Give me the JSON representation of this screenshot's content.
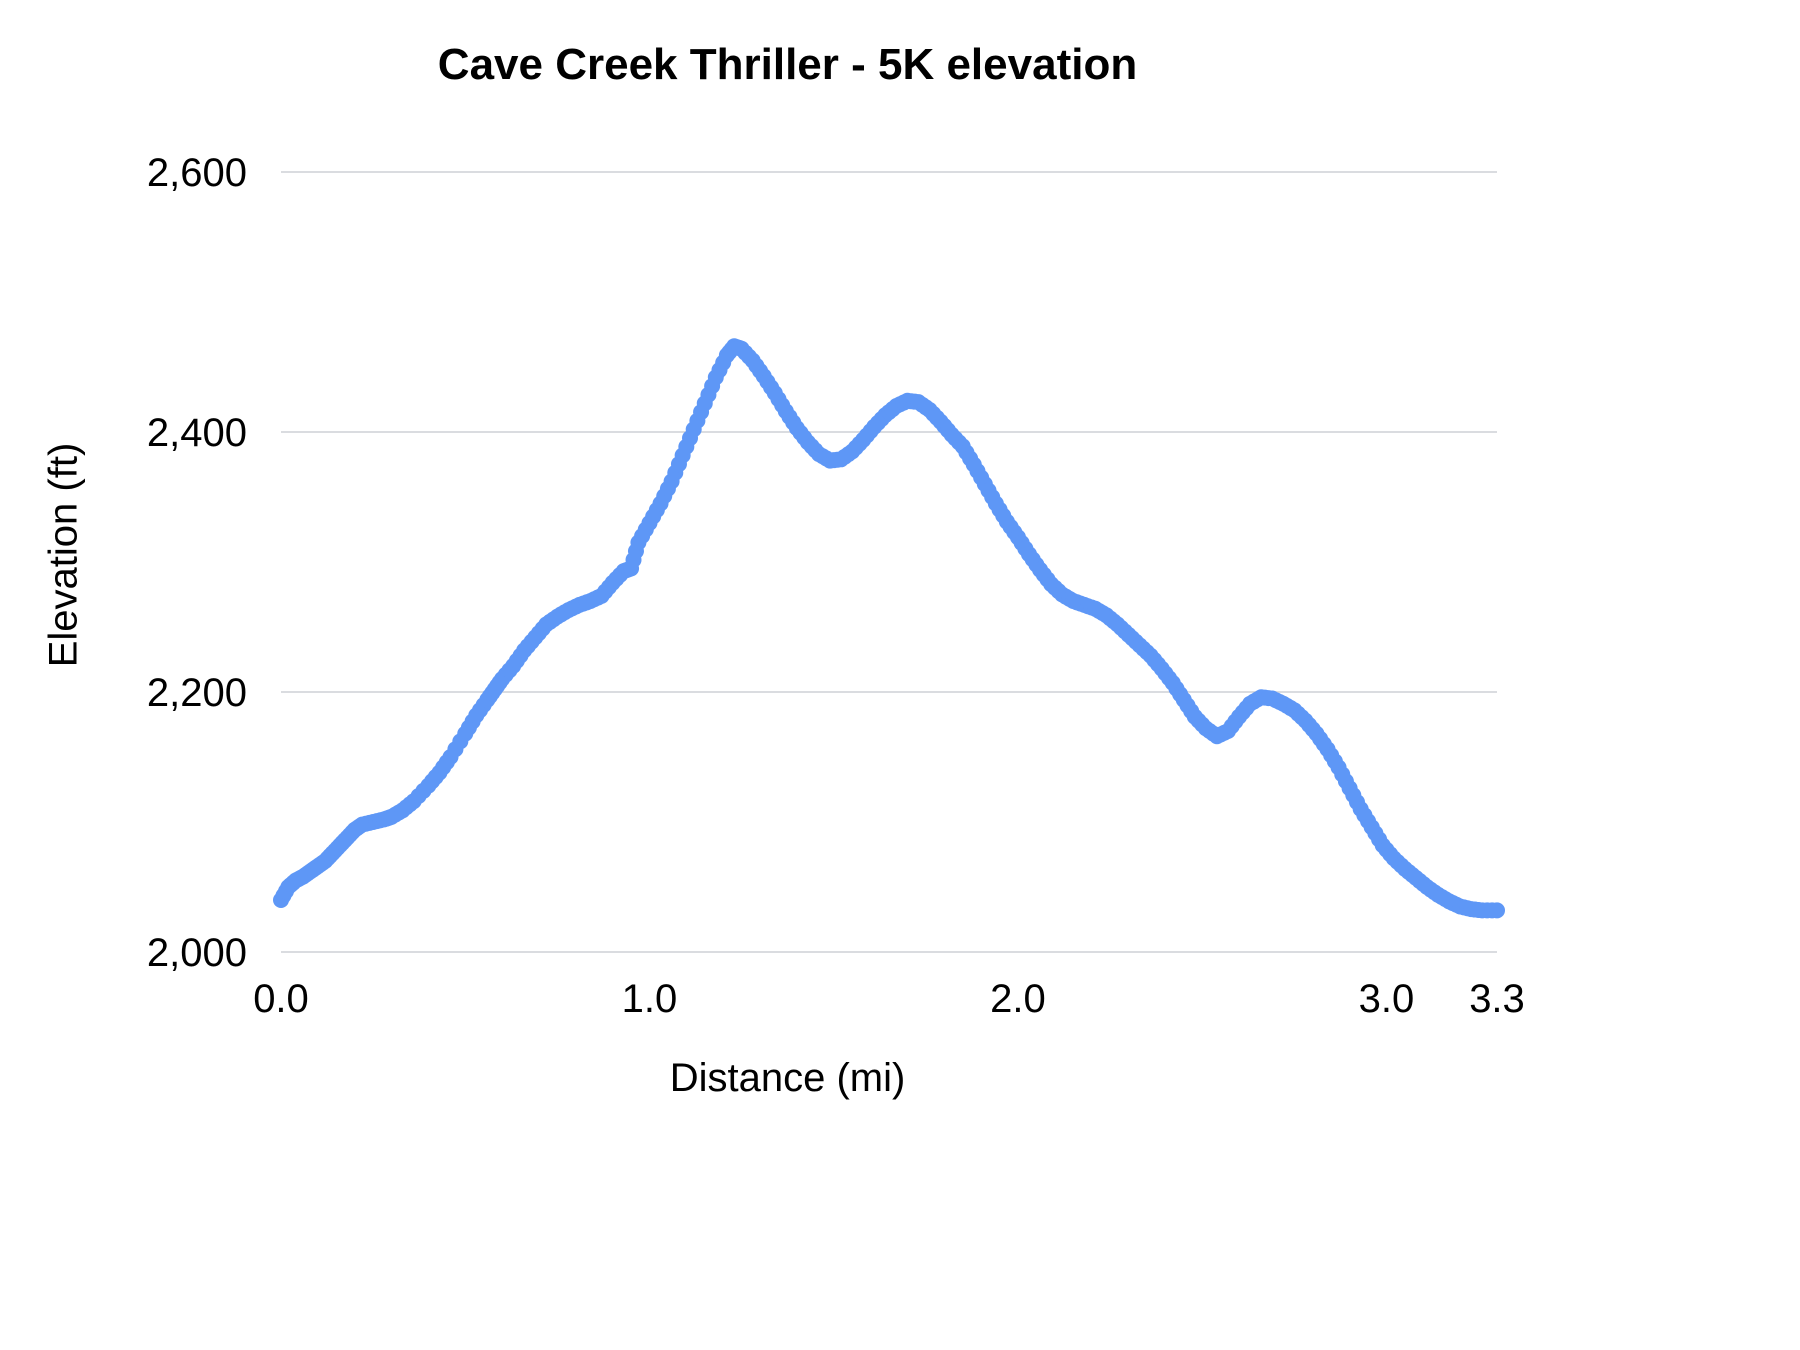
{
  "chart_data": {
    "type": "scatter",
    "title": "Cave Creek Thriller - 5K elevation",
    "xlabel": "Distance (mi)",
    "ylabel": "Elevation (ft)",
    "xlim": [
      0,
      3.3
    ],
    "ylim": [
      2000,
      2600
    ],
    "grid": "horizontal",
    "legend": "none",
    "grid_color": "#dadce0",
    "text_color": "#000000",
    "point_color": "#5e97f6",
    "x_ticks": [
      {
        "value": 0.0,
        "label": "0.0"
      },
      {
        "value": 1.0,
        "label": "1.0"
      },
      {
        "value": 2.0,
        "label": "2.0"
      },
      {
        "value": 3.0,
        "label": "3.0"
      },
      {
        "value": 3.3,
        "label": "3.3"
      }
    ],
    "y_ticks": [
      {
        "value": 2000,
        "label": "2,000"
      },
      {
        "value": 2200,
        "label": "2,200"
      },
      {
        "value": 2400,
        "label": "2,400"
      },
      {
        "value": 2600,
        "label": "2,600"
      }
    ],
    "points": [
      [
        0.0,
        2040
      ],
      [
        0.02,
        2050
      ],
      [
        0.04,
        2055
      ],
      [
        0.06,
        2058
      ],
      [
        0.08,
        2062
      ],
      [
        0.1,
        2066
      ],
      [
        0.12,
        2070
      ],
      [
        0.14,
        2076
      ],
      [
        0.16,
        2082
      ],
      [
        0.18,
        2088
      ],
      [
        0.2,
        2094
      ],
      [
        0.22,
        2098
      ],
      [
        0.25,
        2100
      ],
      [
        0.28,
        2102
      ],
      [
        0.3,
        2104
      ],
      [
        0.33,
        2109
      ],
      [
        0.36,
        2116
      ],
      [
        0.4,
        2128
      ],
      [
        0.43,
        2138
      ],
      [
        0.46,
        2150
      ],
      [
        0.5,
        2168
      ],
      [
        0.53,
        2182
      ],
      [
        0.56,
        2194
      ],
      [
        0.58,
        2202
      ],
      [
        0.6,
        2210
      ],
      [
        0.63,
        2220
      ],
      [
        0.66,
        2232
      ],
      [
        0.69,
        2242
      ],
      [
        0.72,
        2252
      ],
      [
        0.75,
        2258
      ],
      [
        0.78,
        2263
      ],
      [
        0.81,
        2267
      ],
      [
        0.84,
        2270
      ],
      [
        0.87,
        2274
      ],
      [
        0.9,
        2284
      ],
      [
        0.93,
        2293
      ],
      [
        0.95,
        2295
      ],
      [
        0.97,
        2315
      ],
      [
        1.0,
        2330
      ],
      [
        1.03,
        2345
      ],
      [
        1.06,
        2362
      ],
      [
        1.09,
        2382
      ],
      [
        1.12,
        2402
      ],
      [
        1.15,
        2422
      ],
      [
        1.18,
        2442
      ],
      [
        1.21,
        2459
      ],
      [
        1.23,
        2466
      ],
      [
        1.25,
        2464
      ],
      [
        1.28,
        2455
      ],
      [
        1.31,
        2443
      ],
      [
        1.34,
        2430
      ],
      [
        1.37,
        2416
      ],
      [
        1.4,
        2403
      ],
      [
        1.43,
        2392
      ],
      [
        1.46,
        2383
      ],
      [
        1.49,
        2378
      ],
      [
        1.52,
        2379
      ],
      [
        1.55,
        2385
      ],
      [
        1.58,
        2394
      ],
      [
        1.61,
        2404
      ],
      [
        1.64,
        2413
      ],
      [
        1.67,
        2420
      ],
      [
        1.7,
        2424
      ],
      [
        1.73,
        2423
      ],
      [
        1.76,
        2417
      ],
      [
        1.79,
        2408
      ],
      [
        1.82,
        2398
      ],
      [
        1.85,
        2389
      ],
      [
        1.88,
        2375
      ],
      [
        1.91,
        2360
      ],
      [
        1.94,
        2345
      ],
      [
        1.97,
        2331
      ],
      [
        2.0,
        2319
      ],
      [
        2.03,
        2306
      ],
      [
        2.06,
        2294
      ],
      [
        2.09,
        2283
      ],
      [
        2.12,
        2275
      ],
      [
        2.15,
        2270
      ],
      [
        2.18,
        2267
      ],
      [
        2.21,
        2264
      ],
      [
        2.24,
        2259
      ],
      [
        2.27,
        2252
      ],
      [
        2.3,
        2244
      ],
      [
        2.33,
        2236
      ],
      [
        2.36,
        2228
      ],
      [
        2.39,
        2218
      ],
      [
        2.42,
        2207
      ],
      [
        2.45,
        2194
      ],
      [
        2.48,
        2181
      ],
      [
        2.51,
        2172
      ],
      [
        2.54,
        2166
      ],
      [
        2.57,
        2170
      ],
      [
        2.6,
        2181
      ],
      [
        2.63,
        2191
      ],
      [
        2.66,
        2196
      ],
      [
        2.69,
        2195
      ],
      [
        2.72,
        2191
      ],
      [
        2.75,
        2186
      ],
      [
        2.78,
        2178
      ],
      [
        2.81,
        2168
      ],
      [
        2.84,
        2156
      ],
      [
        2.87,
        2142
      ],
      [
        2.9,
        2126
      ],
      [
        2.93,
        2110
      ],
      [
        2.96,
        2096
      ],
      [
        2.99,
        2082
      ],
      [
        3.02,
        2072
      ],
      [
        3.05,
        2064
      ],
      [
        3.08,
        2057
      ],
      [
        3.11,
        2050
      ],
      [
        3.14,
        2044
      ],
      [
        3.17,
        2039
      ],
      [
        3.2,
        2035
      ],
      [
        3.23,
        2033
      ],
      [
        3.26,
        2032
      ],
      [
        3.3,
        2032
      ]
    ]
  }
}
